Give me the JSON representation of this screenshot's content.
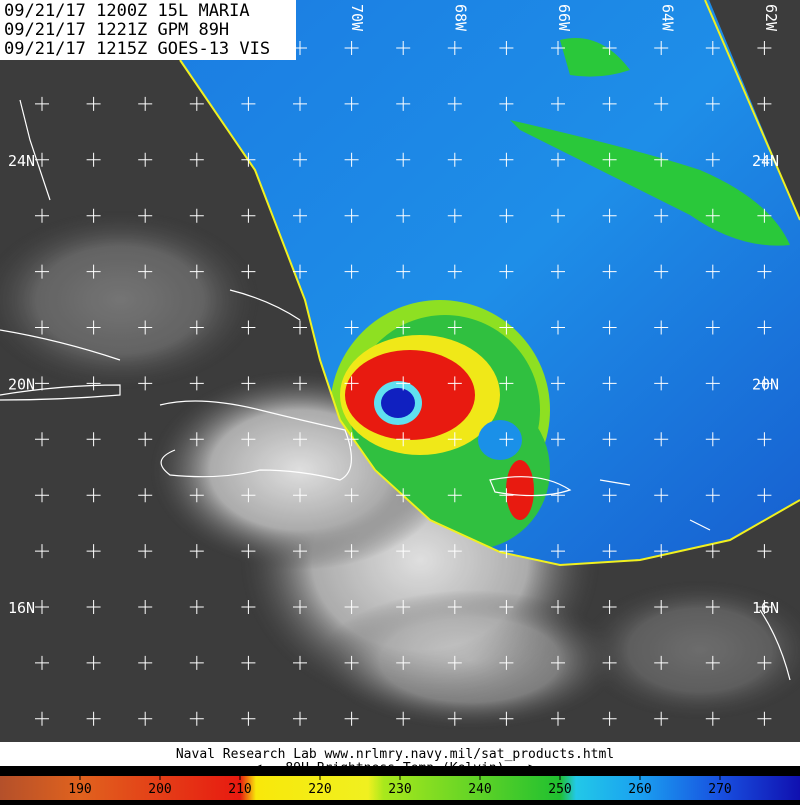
{
  "header": {
    "lines": [
      "09/21/17 1200Z 15L MARIA",
      "09/21/17 1221Z GPM 89H",
      "09/21/17 1215Z GOES-13 VIS"
    ]
  },
  "longitude_labels": [
    "70W",
    "68W",
    "66W",
    "64W",
    "62W"
  ],
  "latitude_labels_left": [
    "24N",
    "20N",
    "16N"
  ],
  "latitude_labels_right": [
    "24N",
    "20N",
    "16N"
  ],
  "footer": {
    "credit": "Naval Research Lab  www.nrlmry.navy.mil/sat_products.html",
    "caption": "<--   89H Brightness Temp (Kelvin)   -->"
  },
  "colorbar": {
    "lim": [
      180,
      280
    ],
    "ticks": [
      190,
      200,
      210,
      220,
      230,
      240,
      250,
      260,
      270
    ]
  }
}
